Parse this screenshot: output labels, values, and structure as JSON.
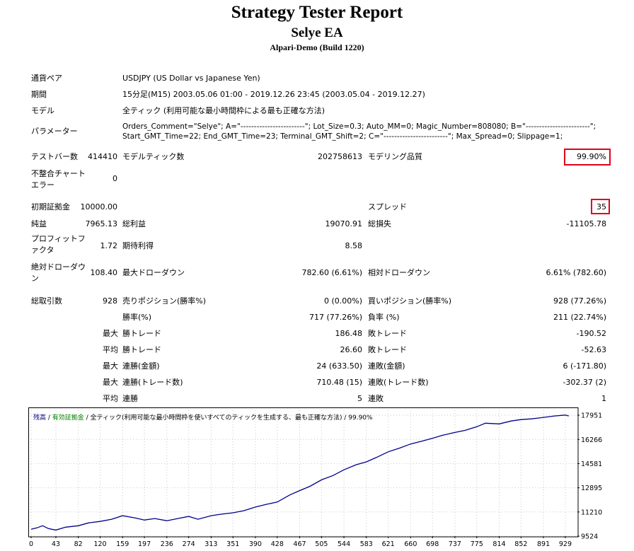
{
  "header": {
    "title": "Strategy Tester Report",
    "ea_name": "Selye EA",
    "server": "Alpari-Demo (Build 1220)"
  },
  "settings": {
    "symbol_label": "通貨ペア",
    "symbol_value": "USDJPY (US Dollar vs Japanese Yen)",
    "period_label": "期間",
    "period_value": "15分足(M15) 2003.05.06 01:00 - 2019.12.26 23:45 (2003.05.04 - 2019.12.27)",
    "model_label": "モデル",
    "model_value": "全ティック (利用可能な最小時間枠による最も正確な方法)",
    "params_label": "パラメーター",
    "params_line1": "Orders_Comment=\"Selye\"; A=\"------------------------\"; Lot_Size=0.3; Auto_MM=0; Magic_Number=808080; B=\"------------------------\";",
    "params_line2": "Start_GMT_Time=22; End_GMT_Time=23; Terminal_GMT_Shift=2; C=\"------------------------\"; Max_Spread=0; Slippage=1;"
  },
  "stats": {
    "bars_label": "テストバー数",
    "bars_value": "414410",
    "ticks_label": "モデルティック数",
    "ticks_value": "202758613",
    "quality_label": "モデリング品質",
    "quality_value": "99.90%",
    "mismatch_label": "不整合チャートエラー",
    "mismatch_value": "0",
    "deposit_label": "初期証拠金",
    "deposit_value": "10000.00",
    "spread_label": "スプレッド",
    "spread_value": "35",
    "netprofit_label": "純益",
    "netprofit_value": "7965.13",
    "grossprofit_label": "総利益",
    "grossprofit_value": "19070.91",
    "grossloss_label": "総損失",
    "grossloss_value": "-11105.78",
    "pf_label": "プロフィットファクタ",
    "pf_value": "1.72",
    "payoff_label": "期待利得",
    "payoff_value": "8.58",
    "absdd_label": "絶対ドローダウン",
    "absdd_value": "108.40",
    "maxdd_label": "最大ドローダウン",
    "maxdd_value": "782.60 (6.61%)",
    "reldd_label": "相対ドローダウン",
    "reldd_value": "6.61% (782.60)",
    "trades_label": "総取引数",
    "trades_value": "928",
    "short_label": "売りポジション(勝率%)",
    "short_value": "0 (0.00%)",
    "long_label": "買いポジション(勝率%)",
    "long_value": "928 (77.26%)",
    "winrate_label": "勝率(%)",
    "winrate_value": "717 (77.26%)",
    "lossrate_label": "負率 (%)",
    "lossrate_value": "211 (22.74%)",
    "largest_prefix": "最大",
    "largest_win_label": "勝トレード",
    "largest_win_value": "186.48",
    "largest_loss_label": "敗トレード",
    "largest_loss_value": "-190.52",
    "avg_prefix": "平均",
    "avg_win_label": "勝トレード",
    "avg_win_value": "26.60",
    "avg_loss_label": "敗トレード",
    "avg_loss_value": "-52.63",
    "max_prefix1": "最大",
    "consec_wins_money_label": "連勝(金額)",
    "consec_wins_money_value": "24 (633.50)",
    "consec_losses_money_label": "連敗(金額)",
    "consec_losses_money_value": "6 (-171.80)",
    "max_prefix2": "最大",
    "consec_profit_label": "連勝(トレード数)",
    "consec_profit_value": "710.48 (15)",
    "consec_loss_label": "連敗(トレード数)",
    "consec_loss_value": "-302.37 (2)",
    "avg_prefix2": "平均",
    "avg_consec_wins_label": "連勝",
    "avg_consec_wins_value": "5",
    "avg_consec_losses_label": "連敗",
    "avg_consec_losses_value": "1"
  },
  "chart_legend": {
    "balance": "残高",
    "sep": " / ",
    "equity": "有効証拠金",
    "rest": " / 全ティック(利用可能な最小時間枠を使いすべてのティックを生成する、最も正確な方法) / 99.90%"
  },
  "colors": {
    "balance_line": "#00008b",
    "equity_text": "#008000",
    "highlight_border": "#e0001a"
  },
  "chart_data": {
    "type": "line",
    "title": "",
    "xlabel": "",
    "ylabel": "",
    "xlim": [
      0,
      950
    ],
    "ylim": [
      9524,
      18300
    ],
    "x_ticks": [
      0,
      43,
      82,
      120,
      159,
      197,
      236,
      274,
      313,
      351,
      390,
      428,
      467,
      505,
      544,
      583,
      621,
      660,
      698,
      737,
      775,
      814,
      852,
      891,
      929
    ],
    "y_ticks": [
      9524,
      11210,
      12895,
      14581,
      16266,
      17951
    ],
    "grid": true,
    "series": [
      {
        "x": [
          0,
          10,
          20,
          30,
          43,
          60,
          82,
          100,
          120,
          140,
          159,
          180,
          197,
          215,
          236,
          255,
          274,
          290,
          313,
          330,
          351,
          370,
          390,
          410,
          428,
          450,
          467,
          485,
          505,
          525,
          544,
          565,
          583,
          600,
          621,
          640,
          660,
          680,
          698,
          715,
          737,
          755,
          775,
          790,
          814,
          835,
          852,
          870,
          891,
          910,
          929,
          935
        ],
        "y": [
          10000,
          10100,
          10250,
          10050,
          9950,
          10150,
          10250,
          10450,
          10550,
          10700,
          10950,
          10800,
          10650,
          10750,
          10600,
          10750,
          10900,
          10700,
          10950,
          11050,
          11150,
          11300,
          11550,
          11750,
          11900,
          12400,
          12700,
          13000,
          13450,
          13750,
          14150,
          14500,
          14700,
          15000,
          15400,
          15650,
          15950,
          16150,
          16350,
          16550,
          16750,
          16900,
          17150,
          17400,
          17350,
          17550,
          17650,
          17700,
          17800,
          17900,
          17965,
          17900
        ]
      }
    ]
  }
}
